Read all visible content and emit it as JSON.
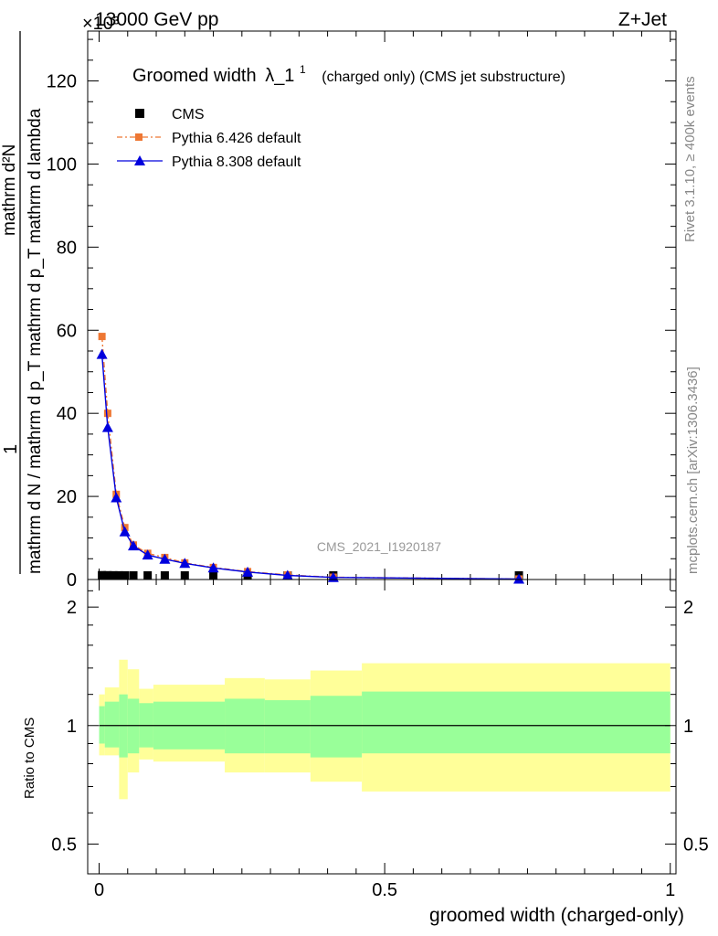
{
  "header": {
    "left": "13000 GeV pp",
    "right": "Z+Jet",
    "exponent": "×10³"
  },
  "side_labels": {
    "rivet": "Rivet 3.1.10, ≥ 400k events",
    "mcplots": "mcplots.cern.ch [arXiv:1306.3436]"
  },
  "watermark": "CMS_2021_I1920187",
  "chart_data": [
    {
      "type": "line",
      "title_main": "Groomed width",
      "title_lambda": "λ_1",
      "title_sup": "1",
      "title_rest": "(charged only) (CMS jet substructure)",
      "ylabel_top": "1",
      "ylabel_numerator": "mathrm d²N",
      "ylabel_denominator": "mathrm d N / mathrm d p_T mathrm d p_T mathrm d lambda",
      "ylim": [
        0,
        132
      ],
      "y_ticks": [
        0,
        20,
        40,
        60,
        80,
        100,
        120
      ],
      "xlim": [
        -0.02,
        1.01
      ],
      "legend_position": "top-left",
      "series": [
        {
          "name": "CMS",
          "color": "#000000",
          "marker": "square",
          "points": [
            [
              0.005,
              0.06
            ],
            [
              0.015,
              0.04
            ],
            [
              0.025,
              0.03
            ],
            [
              0.035,
              0.02
            ],
            [
              0.045,
              0.015
            ],
            [
              0.06,
              0.01
            ],
            [
              0.085,
              0.006
            ],
            [
              0.115,
              0.004
            ],
            [
              0.15,
              0.003
            ],
            [
              0.2,
              0.002
            ],
            [
              0.26,
              0.0015
            ],
            [
              0.33,
              0.001
            ],
            [
              0.41,
              0.0006
            ],
            [
              0.735,
              0.0002
            ]
          ]
        },
        {
          "name": "Pythia 6.426 default",
          "color": "#ee7733",
          "marker": "dot",
          "dash": true,
          "points": [
            [
              0.005,
              58.5
            ],
            [
              0.015,
              40.0
            ],
            [
              0.03,
              20.5
            ],
            [
              0.045,
              12.5
            ],
            [
              0.06,
              8.3
            ],
            [
              0.085,
              6.3
            ],
            [
              0.115,
              5.3
            ],
            [
              0.15,
              4.0
            ],
            [
              0.2,
              2.9
            ],
            [
              0.26,
              1.9
            ],
            [
              0.33,
              1.1
            ],
            [
              0.41,
              0.55
            ],
            [
              0.735,
              0.12
            ]
          ]
        },
        {
          "name": "Pythia 8.308 default",
          "color": "#0000dd",
          "marker": "triangle",
          "dash": false,
          "points": [
            [
              0.005,
              54.2
            ],
            [
              0.015,
              36.6
            ],
            [
              0.03,
              19.7
            ],
            [
              0.045,
              11.5
            ],
            [
              0.06,
              8.1
            ],
            [
              0.085,
              5.9
            ],
            [
              0.115,
              4.9
            ],
            [
              0.15,
              3.9
            ],
            [
              0.2,
              2.8
            ],
            [
              0.26,
              1.8
            ],
            [
              0.33,
              1.0
            ],
            [
              0.41,
              0.5
            ],
            [
              0.735,
              0.1
            ]
          ]
        }
      ]
    },
    {
      "type": "area",
      "ylabel": "Ratio to CMS",
      "xlabel": "groomed width (charged-only)",
      "scale": "log",
      "ylim": [
        0.42,
        2.35
      ],
      "y_ticks": [
        0.5,
        1,
        2
      ],
      "x_ticks": [
        0,
        0.5,
        1
      ],
      "reference_line": 1,
      "bands": [
        {
          "x0": 0.0,
          "x1": 0.01,
          "inner": [
            0.9,
            1.12
          ],
          "outer": [
            0.84,
            1.2
          ]
        },
        {
          "x0": 0.01,
          "x1": 0.035,
          "inner": [
            0.88,
            1.15
          ],
          "outer": [
            0.84,
            1.25
          ]
        },
        {
          "x0": 0.035,
          "x1": 0.05,
          "inner": [
            0.83,
            1.2
          ],
          "outer": [
            0.65,
            1.47
          ]
        },
        {
          "x0": 0.05,
          "x1": 0.07,
          "inner": [
            0.85,
            1.17
          ],
          "outer": [
            0.76,
            1.39
          ]
        },
        {
          "x0": 0.07,
          "x1": 0.095,
          "inner": [
            0.88,
            1.14
          ],
          "outer": [
            0.82,
            1.24
          ]
        },
        {
          "x0": 0.095,
          "x1": 0.22,
          "inner": [
            0.87,
            1.15
          ],
          "outer": [
            0.81,
            1.27
          ]
        },
        {
          "x0": 0.22,
          "x1": 0.29,
          "inner": [
            0.85,
            1.17
          ],
          "outer": [
            0.76,
            1.32
          ]
        },
        {
          "x0": 0.29,
          "x1": 0.37,
          "inner": [
            0.85,
            1.16
          ],
          "outer": [
            0.76,
            1.31
          ]
        },
        {
          "x0": 0.37,
          "x1": 0.46,
          "inner": [
            0.83,
            1.19
          ],
          "outer": [
            0.72,
            1.38
          ]
        },
        {
          "x0": 0.46,
          "x1": 1.0,
          "inner": [
            0.85,
            1.22
          ],
          "outer": [
            0.68,
            1.44
          ]
        }
      ],
      "inner_color": "#99ff99",
      "outer_color": "#ffff99"
    }
  ]
}
